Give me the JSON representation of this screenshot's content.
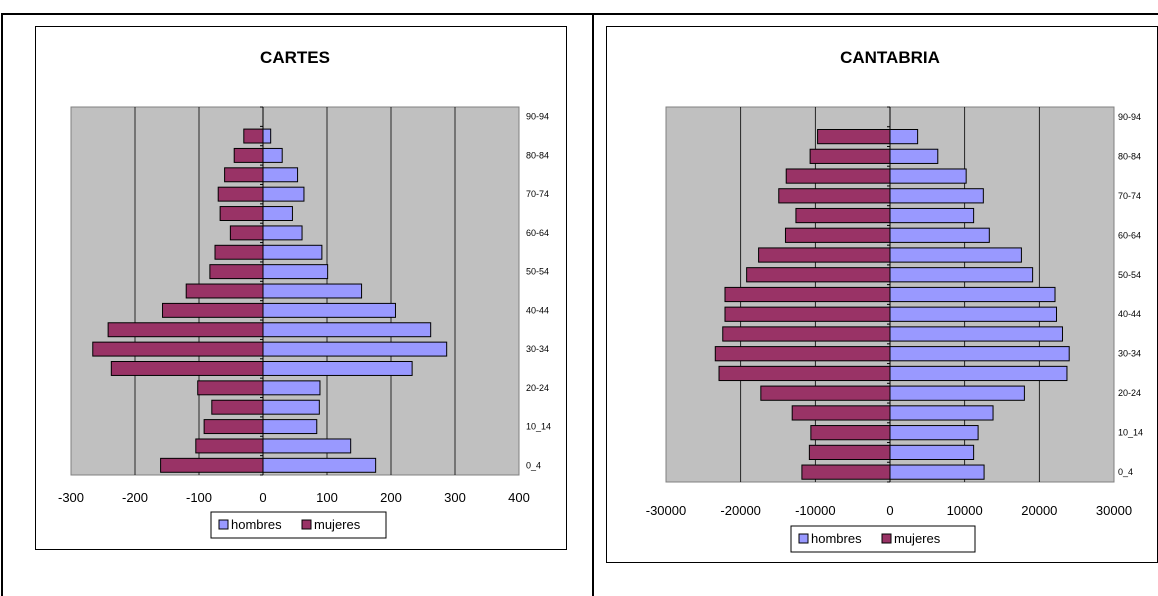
{
  "colors": {
    "hombres": "#9999FF",
    "mujeres": "#993366",
    "plot_bg": "#C0C0C0"
  },
  "chart_data": [
    {
      "type": "bar",
      "orientation": "horizontal",
      "title": "CARTES",
      "categories": [
        "0_4",
        "5_9",
        "10_14",
        "15_19",
        "20-24",
        "25-29",
        "30-34",
        "35-39",
        "40-44",
        "45-49",
        "50-54",
        "55-59",
        "60-64",
        "65-69",
        "70-74",
        "75-79",
        "80-84",
        "85-89",
        "90-94"
      ],
      "category_labels_shown": [
        "0_4",
        "10_14",
        "20-24",
        "30-34",
        "40-44",
        "50-54",
        "60-64",
        "70-74",
        "80-84",
        "90-94"
      ],
      "series": [
        {
          "name": "hombres",
          "values": [
            176,
            137,
            84,
            88,
            89,
            233,
            287,
            262,
            207,
            154,
            101,
            92,
            61,
            46,
            64,
            54,
            30,
            12,
            0
          ]
        },
        {
          "name": "mujeres",
          "values": [
            -160,
            -105,
            -92,
            -80,
            -102,
            -237,
            -266,
            -242,
            -157,
            -120,
            -83,
            -75,
            -51,
            -67,
            -70,
            -60,
            -45,
            -30,
            0
          ]
        }
      ],
      "x_ticks": [
        "-300",
        "-200",
        "-100",
        "0",
        "100",
        "200",
        "300",
        "400"
      ],
      "xlim": [
        -300,
        400
      ],
      "legend_position": "bottom"
    },
    {
      "type": "bar",
      "orientation": "horizontal",
      "title": "CANTABRIA",
      "categories": [
        "0_4",
        "5_9",
        "10_14",
        "15_19",
        "20-24",
        "25-29",
        "30-34",
        "35-39",
        "40-44",
        "45-49",
        "50-54",
        "55-59",
        "60-64",
        "65-69",
        "70-74",
        "75-79",
        "80-84",
        "85-89",
        "90-94"
      ],
      "category_labels_shown": [
        "0_4",
        "10_14",
        "20-24",
        "30-34",
        "40-44",
        "50-54",
        "60-64",
        "70-74",
        "80-84",
        "90-94"
      ],
      "series": [
        {
          "name": "hombres",
          "values": [
            12600,
            11200,
            11800,
            13800,
            18000,
            23700,
            24000,
            23100,
            22300,
            22100,
            19100,
            17600,
            13300,
            11200,
            12500,
            10200,
            6400,
            3700,
            0
          ]
        },
        {
          "name": "mujeres",
          "values": [
            -11800,
            -10800,
            -10600,
            -13100,
            -17300,
            -22900,
            -23400,
            -22400,
            -22100,
            -22100,
            -19200,
            -17600,
            -14000,
            -12600,
            -14900,
            -13900,
            -10700,
            -9700,
            0
          ]
        }
      ],
      "x_ticks": [
        "-30000",
        "-20000",
        "-10000",
        "0",
        "10000",
        "20000",
        "30000"
      ],
      "xlim": [
        -30000,
        30000
      ],
      "legend_position": "bottom"
    }
  ]
}
